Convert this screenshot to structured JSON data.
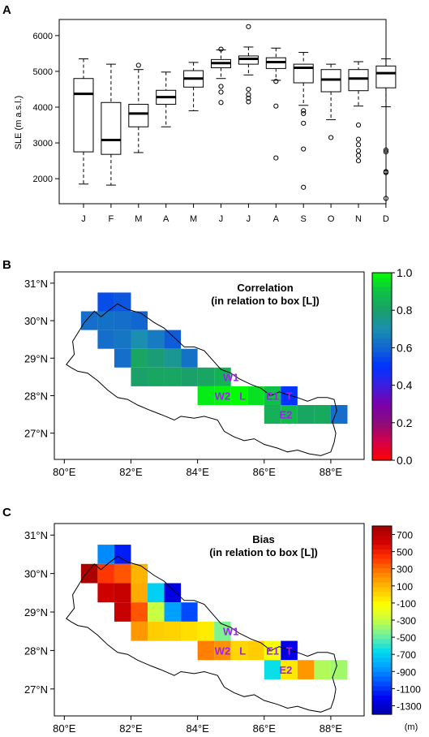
{
  "colors": {
    "panel_border": "#000000",
    "region_label": "#a020f0",
    "corr_scale": [
      "#ff0000",
      "#d2004b",
      "#8b0c7a",
      "#7a00ad",
      "#3a1ee0",
      "#0033ff",
      "#1266d0",
      "#1a8fb0",
      "#1aa068",
      "#0fc048",
      "#00ff00"
    ],
    "bias_scale": [
      "#0000a8",
      "#0000f0",
      "#0050ff",
      "#00a0ff",
      "#00dcf0",
      "#6ff0a0",
      "#c8ff40",
      "#ffff00",
      "#ffc000",
      "#ff8000",
      "#ff3000",
      "#d00000",
      "#a00000"
    ]
  },
  "chart_data": [
    {
      "panel_label": "A",
      "type": "boxplot",
      "ylabel": "SLE (m a.s.l.)",
      "ylim": [
        1300,
        6450
      ],
      "yticks": [
        "2000",
        "3000",
        "4000",
        "5000",
        "6000"
      ],
      "categories": [
        "J",
        "F",
        "M",
        "A",
        "M",
        "J",
        "J",
        "A",
        "S",
        "O",
        "N",
        "D"
      ],
      "boxes": [
        {
          "whisker_low": 1850,
          "q1": 2750,
          "median": 4370,
          "q3": 4800,
          "whisker_high": 5350,
          "outliers": []
        },
        {
          "whisker_low": 1820,
          "q1": 2680,
          "median": 3080,
          "q3": 4130,
          "whisker_high": 5200,
          "outliers": []
        },
        {
          "whisker_low": 2730,
          "q1": 3450,
          "median": 3820,
          "q3": 4080,
          "whisker_high": 5050,
          "outliers": [
            5170
          ]
        },
        {
          "whisker_low": 3450,
          "q1": 4080,
          "median": 4280,
          "q3": 4470,
          "whisker_high": 4980,
          "outliers": []
        },
        {
          "whisker_low": 3900,
          "q1": 4560,
          "median": 4800,
          "q3": 5020,
          "whisker_high": 5250,
          "outliers": []
        },
        {
          "whisker_low": 4800,
          "q1": 5100,
          "median": 5230,
          "q3": 5330,
          "whisker_high": 5600,
          "outliers": [
            5620,
            4580,
            4420,
            4130
          ]
        },
        {
          "whisker_low": 4900,
          "q1": 5200,
          "median": 5350,
          "q3": 5430,
          "whisker_high": 5680,
          "outliers": [
            6250,
            4500,
            4350,
            4250,
            4150
          ]
        },
        {
          "whisker_low": 4750,
          "q1": 5080,
          "median": 5260,
          "q3": 5380,
          "whisker_high": 5650,
          "outliers": [
            4720,
            4030,
            2580
          ]
        },
        {
          "whisker_low": 4050,
          "q1": 4680,
          "median": 5100,
          "q3": 5200,
          "whisker_high": 5530,
          "outliers": [
            3900,
            3820,
            3550,
            2830,
            1760
          ]
        },
        {
          "whisker_low": 3650,
          "q1": 4430,
          "median": 4770,
          "q3": 5050,
          "whisker_high": 5200,
          "outliers": [
            3150
          ]
        },
        {
          "whisker_low": 4030,
          "q1": 4460,
          "median": 4800,
          "q3": 5050,
          "whisker_high": 5270,
          "outliers": [
            3500,
            3100,
            2950,
            2780,
            2650,
            2500
          ]
        },
        {
          "whisker_low": 4010,
          "q1": 4540,
          "median": 4950,
          "q3": 5150,
          "whisker_high": 5350,
          "outliers": [
            2800,
            2750,
            2200,
            2170,
            1450
          ]
        }
      ]
    },
    {
      "panel_label": "B",
      "type": "heatmap",
      "title": "Correlation",
      "subtitle": "(in relation to box [L])",
      "xlim": [
        79.7,
        89.0
      ],
      "ylim": [
        26.3,
        31.3
      ],
      "xticks": [
        "80°E",
        "82°E",
        "84°E",
        "86°E",
        "88°E"
      ],
      "yticks": [
        "27°N",
        "28°N",
        "29°N",
        "30°N",
        "31°N"
      ],
      "colorbar_ticks": [
        "0.0",
        "0.2",
        "0.4",
        "0.6",
        "0.8",
        "1.0"
      ],
      "colorbar_range": [
        0,
        1
      ],
      "cells": [
        {
          "lon": 81.25,
          "lat": 30.5,
          "value": 0.55
        },
        {
          "lon": 81.75,
          "lat": 30.5,
          "value": 0.57
        },
        {
          "lon": 80.75,
          "lat": 30.0,
          "value": 0.62
        },
        {
          "lon": 81.25,
          "lat": 30.0,
          "value": 0.63
        },
        {
          "lon": 81.75,
          "lat": 30.0,
          "value": 0.62
        },
        {
          "lon": 82.25,
          "lat": 30.0,
          "value": 0.6
        },
        {
          "lon": 81.25,
          "lat": 29.5,
          "value": 0.62
        },
        {
          "lon": 81.75,
          "lat": 29.5,
          "value": 0.64
        },
        {
          "lon": 82.25,
          "lat": 29.5,
          "value": 0.7
        },
        {
          "lon": 82.75,
          "lat": 29.5,
          "value": 0.65
        },
        {
          "lon": 83.25,
          "lat": 29.5,
          "value": 0.58
        },
        {
          "lon": 81.75,
          "lat": 29.0,
          "value": 0.62
        },
        {
          "lon": 82.25,
          "lat": 29.0,
          "value": 0.82
        },
        {
          "lon": 82.75,
          "lat": 29.0,
          "value": 0.78
        },
        {
          "lon": 83.25,
          "lat": 29.0,
          "value": 0.74
        },
        {
          "lon": 83.75,
          "lat": 29.0,
          "value": 0.63
        },
        {
          "lon": 82.25,
          "lat": 28.5,
          "value": 0.8
        },
        {
          "lon": 82.75,
          "lat": 28.5,
          "value": 0.82
        },
        {
          "lon": 83.25,
          "lat": 28.5,
          "value": 0.82
        },
        {
          "lon": 83.75,
          "lat": 28.5,
          "value": 0.8
        },
        {
          "lon": 84.25,
          "lat": 28.5,
          "value": 0.82
        },
        {
          "lon": 84.75,
          "lat": 28.5,
          "value": 0.86
        },
        {
          "lon": 84.25,
          "lat": 28.0,
          "value": 0.97
        },
        {
          "lon": 84.75,
          "lat": 28.0,
          "value": 0.98
        },
        {
          "lon": 85.25,
          "lat": 28.0,
          "value": 1.0
        },
        {
          "lon": 85.75,
          "lat": 28.0,
          "value": 0.95
        },
        {
          "lon": 86.25,
          "lat": 28.0,
          "value": 0.9
        },
        {
          "lon": 86.75,
          "lat": 28.0,
          "value": 0.5
        },
        {
          "lon": 86.25,
          "lat": 27.5,
          "value": 0.85
        },
        {
          "lon": 86.75,
          "lat": 27.5,
          "value": 0.88
        },
        {
          "lon": 87.25,
          "lat": 27.5,
          "value": 0.82
        },
        {
          "lon": 87.75,
          "lat": 27.5,
          "value": 0.83
        },
        {
          "lon": 88.25,
          "lat": 27.5,
          "value": 0.62
        }
      ],
      "region_labels": [
        {
          "text": "W1",
          "lon": 85.0,
          "lat": 28.5
        },
        {
          "text": "W2",
          "lon": 84.75,
          "lat": 28.0
        },
        {
          "text": "L",
          "lon": 85.35,
          "lat": 28.0
        },
        {
          "text": "E1",
          "lon": 86.25,
          "lat": 28.0
        },
        {
          "text": "T",
          "lon": 86.75,
          "lat": 28.0
        },
        {
          "text": "E2",
          "lon": 86.65,
          "lat": 27.5
        }
      ]
    },
    {
      "panel_label": "C",
      "type": "heatmap",
      "title": "Bias",
      "subtitle": "(in relation to box [L])",
      "xlim": [
        79.7,
        89.0
      ],
      "ylim": [
        26.3,
        31.3
      ],
      "xticks": [
        "80°E",
        "82°E",
        "84°E",
        "86°E",
        "88°E"
      ],
      "yticks": [
        "27°N",
        "28°N",
        "29°N",
        "30°N",
        "31°N"
      ],
      "colorbar_ticks": [
        "700",
        "500",
        "300",
        "100",
        "-100",
        "-300",
        "-500",
        "-700",
        "-900",
        "-1100",
        "-1300"
      ],
      "colorbar_range": [
        -1400,
        800
      ],
      "colorbar_unit": "(m)",
      "cells": [
        {
          "lon": 81.25,
          "lat": 30.5,
          "value": -900
        },
        {
          "lon": 81.75,
          "lat": 30.5,
          "value": -1150
        },
        {
          "lon": 80.75,
          "lat": 30.0,
          "value": 750
        },
        {
          "lon": 81.25,
          "lat": 30.0,
          "value": 420
        },
        {
          "lon": 81.75,
          "lat": 30.0,
          "value": 350
        },
        {
          "lon": 82.25,
          "lat": 30.0,
          "value": 100
        },
        {
          "lon": 81.25,
          "lat": 29.5,
          "value": 620
        },
        {
          "lon": 81.75,
          "lat": 29.5,
          "value": 650
        },
        {
          "lon": 82.25,
          "lat": 29.5,
          "value": 130
        },
        {
          "lon": 82.75,
          "lat": 29.5,
          "value": -700
        },
        {
          "lon": 83.25,
          "lat": 29.5,
          "value": -1250
        },
        {
          "lon": 81.75,
          "lat": 29.0,
          "value": 650
        },
        {
          "lon": 82.25,
          "lat": 29.0,
          "value": 350
        },
        {
          "lon": 82.75,
          "lat": 29.0,
          "value": -300
        },
        {
          "lon": 83.25,
          "lat": 29.0,
          "value": -850
        },
        {
          "lon": 83.75,
          "lat": 29.0,
          "value": -1050
        },
        {
          "lon": 82.25,
          "lat": 28.5,
          "value": 180
        },
        {
          "lon": 82.75,
          "lat": 28.5,
          "value": 30
        },
        {
          "lon": 83.25,
          "lat": 28.5,
          "value": 10
        },
        {
          "lon": 83.75,
          "lat": 28.5,
          "value": -20
        },
        {
          "lon": 84.25,
          "lat": 28.5,
          "value": -60
        },
        {
          "lon": 84.75,
          "lat": 28.5,
          "value": -450
        },
        {
          "lon": 84.25,
          "lat": 28.0,
          "value": 250
        },
        {
          "lon": 84.75,
          "lat": 28.0,
          "value": 200
        },
        {
          "lon": 85.25,
          "lat": 28.0,
          "value": 0
        },
        {
          "lon": 85.75,
          "lat": 28.0,
          "value": 30
        },
        {
          "lon": 86.25,
          "lat": 28.0,
          "value": -150
        },
        {
          "lon": 86.75,
          "lat": 28.0,
          "value": -1250
        },
        {
          "lon": 86.25,
          "lat": 27.5,
          "value": -650
        },
        {
          "lon": 86.75,
          "lat": 27.5,
          "value": -50
        },
        {
          "lon": 87.25,
          "lat": 27.5,
          "value": 180
        },
        {
          "lon": 87.75,
          "lat": 27.5,
          "value": -350
        },
        {
          "lon": 88.25,
          "lat": 27.5,
          "value": -380
        }
      ],
      "region_labels": [
        {
          "text": "W1",
          "lon": 85.0,
          "lat": 28.5
        },
        {
          "text": "W2",
          "lon": 84.75,
          "lat": 28.0
        },
        {
          "text": "L",
          "lon": 85.35,
          "lat": 28.0
        },
        {
          "text": "E1",
          "lon": 86.25,
          "lat": 28.0
        },
        {
          "text": "T",
          "lon": 86.75,
          "lat": 28.0
        },
        {
          "text": "E2",
          "lon": 86.65,
          "lat": 27.5
        }
      ]
    }
  ]
}
